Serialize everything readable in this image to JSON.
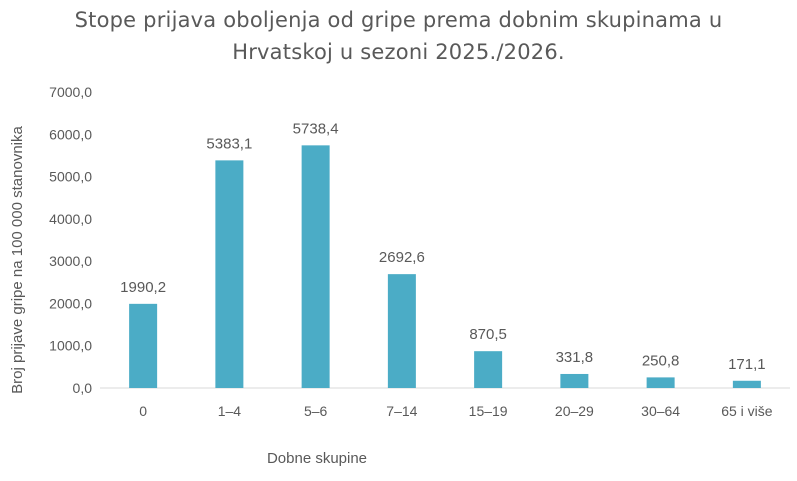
{
  "chart_data": {
    "type": "bar",
    "title_lines": [
      "Stope prijava oboljenja od gripe prema dobnim skupinama u",
      "Hrvatskoj u sezoni 2025./2026."
    ],
    "xlabel": "Dobne skupine",
    "ylabel": "Broj prijave gripe na 100 000 stanovnika",
    "categories": [
      "0",
      "1–4",
      "5–6",
      "7–14",
      "15–19",
      "20–29",
      "30–64",
      "65 i više"
    ],
    "values": [
      1990.2,
      5383.1,
      5738.4,
      2692.6,
      870.5,
      331.8,
      250.8,
      171.1
    ],
    "data_labels": [
      "1990,2",
      "5383,1",
      "5738,4",
      "2692,6",
      "870,5",
      "331,8",
      "250,8",
      "171,1"
    ],
    "yticks": [
      0,
      1000,
      2000,
      3000,
      4000,
      5000,
      6000,
      7000
    ],
    "ytick_labels": [
      "0,0",
      "1000,0",
      "2000,0",
      "3000,0",
      "4000,0",
      "5000,0",
      "6000,0",
      "7000,0"
    ],
    "ylim": [
      0,
      7000
    ],
    "grid": false,
    "legend": "none",
    "bar_color": "#4bacc6"
  }
}
